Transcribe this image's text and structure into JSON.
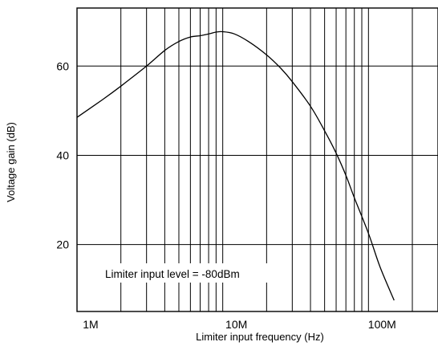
{
  "chart_data": {
    "type": "line",
    "xscale": "log",
    "xlabel": "Limiter input frequency (Hz)",
    "ylabel": "Voltage gain (dB)",
    "xlim": [
      1000000,
      300000000
    ],
    "ylim": [
      5,
      73
    ],
    "x_ticks": [
      {
        "value": 1000000,
        "label": "1M"
      },
      {
        "value": 10000000,
        "label": "10M"
      },
      {
        "value": 100000000,
        "label": "100M"
      }
    ],
    "y_ticks": [
      {
        "value": 20,
        "label": "20"
      },
      {
        "value": 40,
        "label": "40"
      },
      {
        "value": 60,
        "label": "60"
      }
    ],
    "grid": true,
    "annotation": "Limiter input level = -80dBm",
    "series": [
      {
        "color": "#000000",
        "x": [
          1000000,
          1500000,
          2000000,
          3000000,
          4000000,
          5000000,
          6000000,
          7000000,
          8000000,
          9000000,
          10000000,
          12000000,
          15000000,
          20000000,
          25000000,
          30000000,
          40000000,
          50000000,
          60000000,
          70000000,
          80000000,
          100000000,
          120000000,
          150000000
        ],
        "y": [
          48.5,
          52.5,
          55.5,
          60.0,
          63.5,
          65.5,
          66.5,
          66.8,
          67.2,
          67.6,
          67.7,
          67.2,
          65.5,
          62.5,
          59.5,
          56.5,
          51.0,
          45.5,
          40.5,
          35.5,
          30.5,
          22.5,
          15.0,
          7.5
        ]
      }
    ]
  }
}
